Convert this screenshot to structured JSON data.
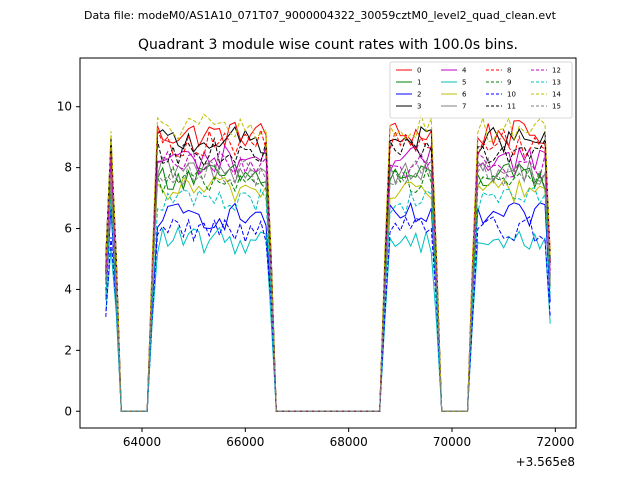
{
  "figure": {
    "header_text": "Data file: modeM0/AS1A10_071T07_9000004322_30059cztM0_level2_quad_clean.evt"
  },
  "chart_data": {
    "type": "line",
    "title": "Quadrant 3 module wise count rates with 100.0s bins.",
    "xlabel": "",
    "ylabel": "",
    "x_offset_label": "+3.565e8",
    "xlim": [
      62800,
      72400
    ],
    "ylim": [
      -0.55,
      11.6
    ],
    "x_ticks": [
      64000,
      66000,
      68000,
      70000,
      72000
    ],
    "x_tick_labels": [
      "64000",
      "66000",
      "68000",
      "70000",
      "72000"
    ],
    "y_ticks": [
      0,
      2,
      4,
      6,
      8,
      10
    ],
    "y_tick_labels": [
      "0",
      "2",
      "4",
      "6",
      "8",
      "10"
    ],
    "grid": false,
    "legend_position": "top-right",
    "legend_columns": 4,
    "x_start": 63300,
    "bin_width": 100,
    "n_bins": 87,
    "good_time_intervals": [
      [
        63300,
        63500
      ],
      [
        64200,
        66500
      ],
      [
        68700,
        69700
      ],
      [
        70400,
        71900
      ]
    ],
    "series": [
      {
        "name": "0",
        "color": "#ff0000",
        "dash": "solid",
        "level": 9.1
      },
      {
        "name": "1",
        "color": "#008000",
        "dash": "solid",
        "level": 7.7
      },
      {
        "name": "2",
        "color": "#0000ff",
        "dash": "solid",
        "level": 6.4
      },
      {
        "name": "3",
        "color": "#000000",
        "dash": "solid",
        "level": 8.9
      },
      {
        "name": "4",
        "color": "#c000c0",
        "dash": "solid",
        "level": 8.3
      },
      {
        "name": "5",
        "color": "#00bfbf",
        "dash": "solid",
        "level": 5.6
      },
      {
        "name": "6",
        "color": "#bfbf00",
        "dash": "solid",
        "level": 7.3
      },
      {
        "name": "7",
        "color": "#808080",
        "dash": "solid",
        "level": 7.9
      },
      {
        "name": "8",
        "color": "#ff0000",
        "dash": "dashed",
        "level": 8.8
      },
      {
        "name": "9",
        "color": "#008000",
        "dash": "dashed",
        "level": 7.6
      },
      {
        "name": "10",
        "color": "#0000ff",
        "dash": "dashed",
        "level": 6.0
      },
      {
        "name": "11",
        "color": "#000000",
        "dash": "dashed",
        "level": 8.5
      },
      {
        "name": "12",
        "color": "#c000c0",
        "dash": "dashed",
        "level": 8.1
      },
      {
        "name": "13",
        "color": "#00bfbf",
        "dash": "dashed",
        "level": 6.9
      },
      {
        "name": "14",
        "color": "#bfbf00",
        "dash": "dashed",
        "level": 9.3
      },
      {
        "name": "15",
        "color": "#808080",
        "dash": "dashed",
        "level": 7.8
      }
    ]
  }
}
